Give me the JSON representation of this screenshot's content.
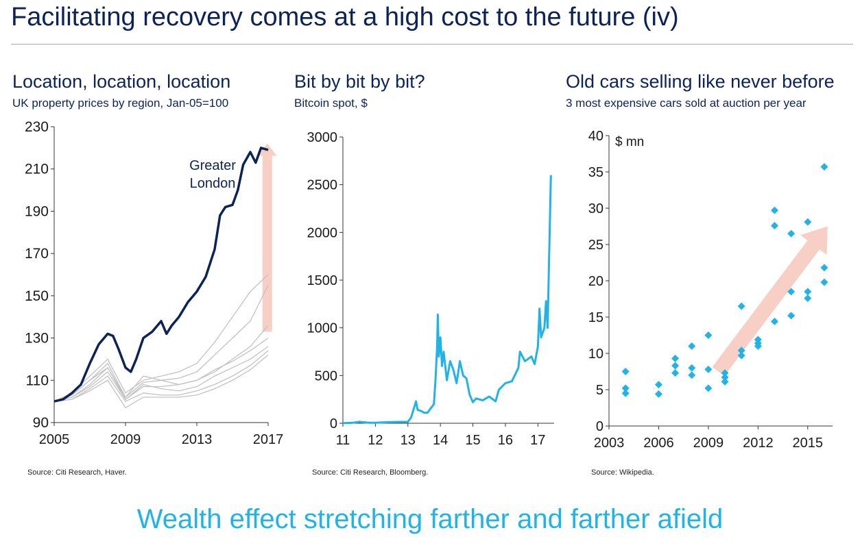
{
  "slide": {
    "title": "Facilitating recovery comes at a high cost to the future (iv)",
    "footer": "Wealth effect stretching farther and farther afield"
  },
  "panels": [
    {
      "title": "Location, location, location",
      "subtitle": "UK property prices by region, Jan-05=100",
      "source": "Source: Citi Research, Haver."
    },
    {
      "title": "Bit by bit by bit?",
      "subtitle": "Bitcoin spot, $",
      "source": "Source: Citi Research, Bloomberg."
    },
    {
      "title": "Old cars selling like never before",
      "subtitle": "3 most expensive cars sold at auction per year",
      "source": "Source: Wikipedia."
    }
  ],
  "colors": {
    "navy": "#0b2357",
    "cyan": "#1fb3e6",
    "grey_series": "#c2c2c2",
    "arrow": "#f7cfc4"
  },
  "chart_data": [
    {
      "type": "line",
      "title": "Location, location, location",
      "subtitle": "UK property prices by region, Jan-05=100",
      "xlim": [
        2005,
        2017
      ],
      "ylim": [
        90,
        230
      ],
      "x_ticks": [
        "2005",
        "2009",
        "2013",
        "2017"
      ],
      "y_ticks": [
        "90",
        "110",
        "130",
        "150",
        "170",
        "190",
        "210",
        "230"
      ],
      "annotation": "Greater\nLondon",
      "series": [
        {
          "name": "Greater London",
          "x": [
            2005,
            2005.5,
            2006,
            2006.5,
            2007,
            2007.5,
            2008,
            2008.3,
            2008.6,
            2009,
            2009.3,
            2009.6,
            2010,
            2010.5,
            2011,
            2011.3,
            2011.6,
            2012,
            2012.5,
            2013,
            2013.5,
            2014,
            2014.3,
            2014.6,
            2015,
            2015.3,
            2015.6,
            2016,
            2016.3,
            2016.6,
            2017
          ],
          "values": [
            100,
            101,
            104,
            108,
            118,
            127,
            132,
            131,
            125,
            116,
            114,
            120,
            130,
            133,
            138,
            132,
            136,
            140,
            147,
            152,
            159,
            172,
            188,
            192,
            193,
            200,
            212,
            218,
            213,
            220,
            219
          ]
        },
        {
          "x": [
            2005,
            2006,
            2007,
            2008,
            2009,
            2010,
            2011,
            2012,
            2013,
            2014,
            2015,
            2016,
            2017
          ],
          "values": [
            100,
            104,
            112,
            120,
            104,
            110,
            112,
            114,
            118,
            128,
            140,
            152,
            160
          ]
        },
        {
          "x": [
            2005,
            2006,
            2007,
            2008,
            2009,
            2010,
            2011,
            2012,
            2013,
            2014,
            2015,
            2016,
            2017
          ],
          "values": [
            100,
            103,
            110,
            118,
            102,
            109,
            110,
            111,
            114,
            122,
            130,
            138,
            155
          ]
        },
        {
          "x": [
            2005,
            2006,
            2007,
            2008,
            2009,
            2010,
            2011,
            2012,
            2013,
            2014,
            2015,
            2016,
            2017
          ],
          "values": [
            100,
            103,
            110,
            116,
            101,
            107,
            107,
            108,
            110,
            114,
            120,
            126,
            136
          ]
        },
        {
          "x": [
            2005,
            2006,
            2007,
            2008,
            2009,
            2010,
            2011,
            2012,
            2013,
            2014,
            2015,
            2016,
            2017
          ],
          "values": [
            100,
            102,
            108,
            116,
            102,
            112,
            110,
            108,
            110,
            115,
            119,
            124,
            130
          ]
        },
        {
          "x": [
            2005,
            2006,
            2007,
            2008,
            2009,
            2010,
            2011,
            2012,
            2013,
            2014,
            2015,
            2016,
            2017
          ],
          "values": [
            100,
            102,
            107,
            114,
            101,
            108,
            106,
            105,
            107,
            112,
            116,
            120,
            126
          ]
        },
        {
          "x": [
            2005,
            2006,
            2007,
            2008,
            2009,
            2010,
            2011,
            2012,
            2013,
            2014,
            2015,
            2016,
            2017
          ],
          "values": [
            100,
            101,
            106,
            112,
            100,
            104,
            103,
            103,
            105,
            108,
            112,
            117,
            124
          ]
        },
        {
          "x": [
            2005,
            2006,
            2007,
            2008,
            2009,
            2010,
            2011,
            2012,
            2013,
            2014,
            2015,
            2016,
            2017
          ],
          "values": [
            100,
            101,
            105,
            110,
            97,
            102,
            102,
            102,
            103,
            106,
            110,
            115,
            122
          ]
        }
      ]
    },
    {
      "type": "line",
      "title": "Bit by bit by bit?",
      "subtitle": "Bitcoin spot, $",
      "xlim": [
        11,
        17.5
      ],
      "ylim": [
        0,
        3000
      ],
      "x_ticks": [
        "11",
        "12",
        "13",
        "14",
        "15",
        "16",
        "17"
      ],
      "y_ticks": [
        "0",
        "500",
        "1000",
        "1500",
        "2000",
        "2500",
        "3000"
      ],
      "series": [
        {
          "name": "Bitcoin spot",
          "x": [
            11,
            11.3,
            11.5,
            11.8,
            12,
            12.5,
            13,
            13.1,
            13.25,
            13.3,
            13.4,
            13.5,
            13.6,
            13.8,
            13.85,
            13.9,
            13.92,
            13.95,
            14,
            14.05,
            14.1,
            14.2,
            14.3,
            14.4,
            14.5,
            14.6,
            14.7,
            14.8,
            14.9,
            15,
            15.1,
            15.3,
            15.5,
            15.7,
            15.8,
            16,
            16.2,
            16.4,
            16.45,
            16.6,
            16.8,
            16.9,
            17,
            17.05,
            17.1,
            17.2,
            17.25,
            17.3,
            17.35,
            17.4
          ],
          "values": [
            1,
            5,
            15,
            5,
            5,
            12,
            15,
            60,
            230,
            140,
            130,
            110,
            110,
            200,
            450,
            800,
            1140,
            700,
            900,
            600,
            750,
            450,
            650,
            560,
            420,
            650,
            500,
            470,
            300,
            220,
            260,
            240,
            280,
            230,
            350,
            420,
            440,
            580,
            750,
            650,
            700,
            620,
            800,
            1200,
            900,
            1000,
            1280,
            1000,
            1800,
            2600
          ]
        }
      ]
    },
    {
      "type": "scatter",
      "title": "Old cars selling like never before",
      "subtitle": "3 most expensive cars sold at auction per year",
      "unit_label": "$ mn",
      "xlim": [
        2003,
        2016.5
      ],
      "ylim": [
        0,
        40
      ],
      "x_ticks": [
        "2003",
        "2006",
        "2009",
        "2012",
        "2015"
      ],
      "y_ticks": [
        "0",
        "5",
        "10",
        "15",
        "20",
        "25",
        "30",
        "35",
        "40"
      ],
      "x": [
        2004,
        2004,
        2004,
        2006,
        2006,
        2007,
        2007,
        2007,
        2008,
        2008,
        2008,
        2009,
        2009,
        2009,
        2010,
        2010,
        2010,
        2011,
        2011,
        2011,
        2012,
        2012,
        2012,
        2013,
        2013,
        2013,
        2014,
        2014,
        2014,
        2015,
        2015,
        2015,
        2016,
        2016,
        2016
      ],
      "values": [
        7.5,
        5.2,
        4.5,
        5.7,
        4.4,
        9.3,
        8.3,
        7.3,
        11,
        8,
        7,
        12.5,
        7.8,
        5.2,
        7.3,
        6.7,
        6.1,
        16.5,
        10.4,
        9.7,
        11.9,
        11.4,
        11,
        29.7,
        27.6,
        14.4,
        26.5,
        18.5,
        15.2,
        28.1,
        18.5,
        17.6,
        35.7,
        21.8,
        19.8
      ]
    }
  ]
}
